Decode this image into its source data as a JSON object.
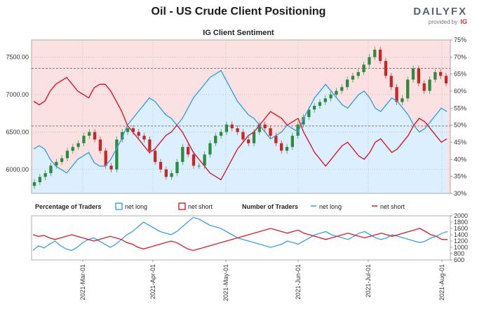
{
  "title": "Oil - US Crude Client Positioning",
  "brand": {
    "name": "DAILYFX",
    "provided_by": "provided by",
    "ig": "IG"
  },
  "colors": {
    "long": "#3aa0e6",
    "short": "#d8192b",
    "candle_up": "#2e8b3d",
    "candle_down": "#c62828",
    "bg_pink": "#fbe1e2",
    "bg_blue": "#dcefff",
    "price_ref": "#999999"
  },
  "chart_data": [
    {
      "type": "line",
      "title": "IG Client Sentiment",
      "y_left": {
        "ticks": [
          6000,
          6500,
          7000,
          7500
        ],
        "tick_labels": [
          "6000.00",
          "6500.00",
          "7000.00",
          "7500.00"
        ],
        "range": [
          5680,
          7730
        ]
      },
      "y_right": {
        "ticks": [
          30,
          35,
          40,
          45,
          50,
          55,
          60,
          65,
          70,
          75
        ],
        "tick_labels": [
          "30%",
          "35%",
          "40%",
          "45%",
          "50%",
          "55%",
          "60%",
          "65%",
          "70%",
          "75%"
        ],
        "range": [
          30,
          75
        ]
      },
      "x_ticks": [
        "2021-Mar-01",
        "2021-Apr-01",
        "2021-May-01",
        "2021-Jun-01",
        "2021-Jul-01",
        "2021-Aug-01"
      ],
      "price_candles_close": [
        5830,
        5900,
        5950,
        6050,
        6100,
        6150,
        6250,
        6300,
        6350,
        6450,
        6500,
        6400,
        6250,
        6050,
        6000,
        6400,
        6500,
        6550,
        6500,
        6450,
        6400,
        6250,
        6100,
        6000,
        5900,
        5950,
        6100,
        6300,
        6200,
        6050,
        6050,
        6200,
        6350,
        6450,
        6500,
        6600,
        6550,
        6500,
        6400,
        6350,
        6500,
        6600,
        6550,
        6450,
        6350,
        6250,
        6300,
        6450,
        6600,
        6700,
        6800,
        6850,
        6900,
        6950,
        7000,
        7050,
        7100,
        7200,
        7250,
        7300,
        7400,
        7500,
        7600,
        7450,
        7250,
        7100,
        6900,
        6950,
        7200,
        7350,
        7150,
        7050,
        7200,
        7300,
        7250,
        7150
      ],
      "series": [
        {
          "name": "net long",
          "values": [
            43,
            44,
            43,
            40,
            38,
            37,
            36,
            38,
            40,
            41,
            42,
            39,
            38,
            38,
            40,
            43,
            46,
            50,
            52,
            54,
            56,
            58,
            57,
            55,
            53,
            52,
            50,
            52,
            55,
            58,
            60,
            62,
            64,
            65,
            66,
            63,
            60,
            57,
            55,
            53,
            52,
            50,
            48,
            46,
            47,
            48,
            50,
            49,
            48,
            52,
            55,
            58,
            60,
            62,
            60,
            58,
            56,
            55,
            57,
            59,
            60,
            58,
            55,
            54,
            56,
            58,
            57,
            55,
            53,
            50,
            48,
            49,
            51,
            53,
            55,
            54
          ]
        },
        {
          "name": "net short",
          "values": [
            57,
            56,
            57,
            60,
            62,
            63,
            64,
            62,
            60,
            59,
            58,
            61,
            62,
            62,
            60,
            57,
            54,
            50,
            48,
            46,
            44,
            42,
            43,
            45,
            47,
            48,
            50,
            48,
            45,
            42,
            40,
            38,
            36,
            35,
            34,
            37,
            40,
            43,
            45,
            47,
            48,
            50,
            52,
            54,
            53,
            52,
            50,
            51,
            52,
            48,
            45,
            42,
            40,
            38,
            40,
            42,
            44,
            45,
            43,
            41,
            40,
            42,
            45,
            46,
            44,
            42,
            43,
            45,
            47,
            50,
            52,
            51,
            49,
            47,
            45,
            46
          ]
        }
      ],
      "price_levels": [
        6600,
        7350
      ],
      "price_levels_dashed": [
        6580,
        7350
      ]
    },
    {
      "type": "line",
      "title": "Percentage of Traders / Number of Traders",
      "legend": [
        {
          "label": "Percentage of Traders",
          "bold": true
        },
        {
          "label": "net long",
          "style": "box",
          "color": "#3aa0e6"
        },
        {
          "label": "net short",
          "style": "box",
          "color": "#d8192b"
        },
        {
          "label": "Number of Traders",
          "bold": true
        },
        {
          "label": "net long",
          "style": "line",
          "color": "#3aa0e6"
        },
        {
          "label": "net short",
          "style": "line",
          "color": "#d8192b"
        }
      ],
      "y_right": {
        "ticks": [
          600,
          800,
          1000,
          1200,
          1400,
          1600,
          1800,
          2000
        ],
        "tick_labels": [
          "600",
          "800",
          "1000",
          "1200",
          "1400",
          "1600",
          "1800",
          "2000"
        ],
        "range": [
          600,
          2000
        ]
      },
      "series": [
        {
          "name": "net long",
          "values": [
            900,
            1050,
            980,
            1100,
            1200,
            1050,
            950,
            900,
            1000,
            1150,
            1250,
            1300,
            1200,
            1100,
            1000,
            1100,
            1250,
            1400,
            1500,
            1650,
            1800,
            1700,
            1600,
            1500,
            1450,
            1400,
            1500,
            1650,
            1800,
            1950,
            1900,
            1800,
            1700,
            1650,
            1600,
            1500,
            1400,
            1300,
            1250,
            1200,
            1150,
            1100,
            1050,
            1000,
            1050,
            1100,
            1200,
            1150,
            1100,
            1200,
            1300,
            1400,
            1450,
            1500,
            1400,
            1350,
            1300,
            1250,
            1350,
            1450,
            1500,
            1400,
            1300,
            1250,
            1300,
            1400,
            1350,
            1300,
            1250,
            1200,
            1150,
            1200,
            1300,
            1350,
            1450,
            1500
          ]
        },
        {
          "name": "net short",
          "values": [
            1400,
            1350,
            1380,
            1300,
            1250,
            1300,
            1350,
            1400,
            1350,
            1300,
            1250,
            1200,
            1250,
            1300,
            1350,
            1300,
            1250,
            1150,
            1100,
            1000,
            950,
            1000,
            1050,
            1100,
            1150,
            1200,
            1150,
            1050,
            950,
            900,
            950,
            1000,
            1050,
            1100,
            1150,
            1200,
            1250,
            1300,
            1350,
            1400,
            1450,
            1500,
            1550,
            1600,
            1550,
            1500,
            1450,
            1500,
            1550,
            1450,
            1400,
            1350,
            1300,
            1250,
            1300,
            1350,
            1400,
            1450,
            1400,
            1350,
            1300,
            1350,
            1400,
            1450,
            1400,
            1350,
            1400,
            1450,
            1500,
            1550,
            1600,
            1500,
            1400,
            1350,
            1250,
            1250
          ]
        }
      ]
    }
  ]
}
